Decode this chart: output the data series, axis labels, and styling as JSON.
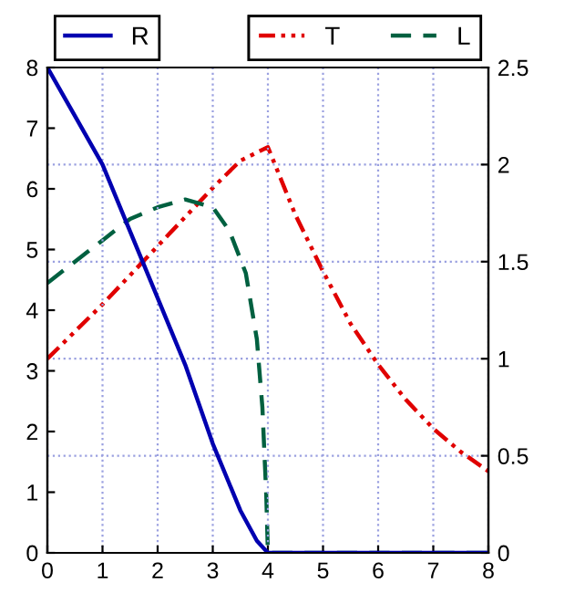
{
  "chart_data": {
    "type": "line",
    "xlim": [
      0,
      8
    ],
    "xticks": [
      0,
      1,
      2,
      3,
      4,
      5,
      6,
      7,
      8
    ],
    "ylim": [
      0,
      8
    ],
    "yticks": [
      0,
      1,
      2,
      3,
      4,
      5,
      6,
      7,
      8
    ],
    "y2lim": [
      0,
      2.5
    ],
    "y2ticks": [
      0,
      0.5,
      1,
      1.5,
      2,
      2.5
    ],
    "grid": true,
    "legend": "top",
    "series": [
      {
        "name": "R",
        "color": "#0000b0",
        "line_style": "solid",
        "x": [
          0,
          0.5,
          1,
          1.5,
          2,
          2.5,
          3,
          3.5,
          3.8,
          4,
          8
        ],
        "values": [
          8,
          7.2,
          6.4,
          5.3,
          4.2,
          3.1,
          1.8,
          0.7,
          0.2,
          0,
          0
        ]
      },
      {
        "name": "T",
        "color": "#e00000",
        "line_style": "dashdot",
        "axis": "y2",
        "x": [
          0,
          1,
          2,
          3,
          3.5,
          4,
          4.5,
          5,
          5.5,
          6,
          6.5,
          7,
          7.5,
          8
        ],
        "values": [
          1.0,
          1.28,
          1.58,
          1.88,
          2.02,
          2.09,
          1.74,
          1.45,
          1.18,
          0.97,
          0.79,
          0.64,
          0.52,
          0.42
        ]
      },
      {
        "name": "L",
        "color": "#006040",
        "line_style": "dashed",
        "axis": "y2",
        "x": [
          0,
          1,
          1.5,
          2,
          2.5,
          3,
          3.3,
          3.6,
          3.8,
          3.9,
          3.97,
          4,
          8
        ],
        "values": [
          1.39,
          1.61,
          1.72,
          1.78,
          1.82,
          1.78,
          1.66,
          1.44,
          1.1,
          0.75,
          0.3,
          0,
          0
        ]
      }
    ]
  }
}
